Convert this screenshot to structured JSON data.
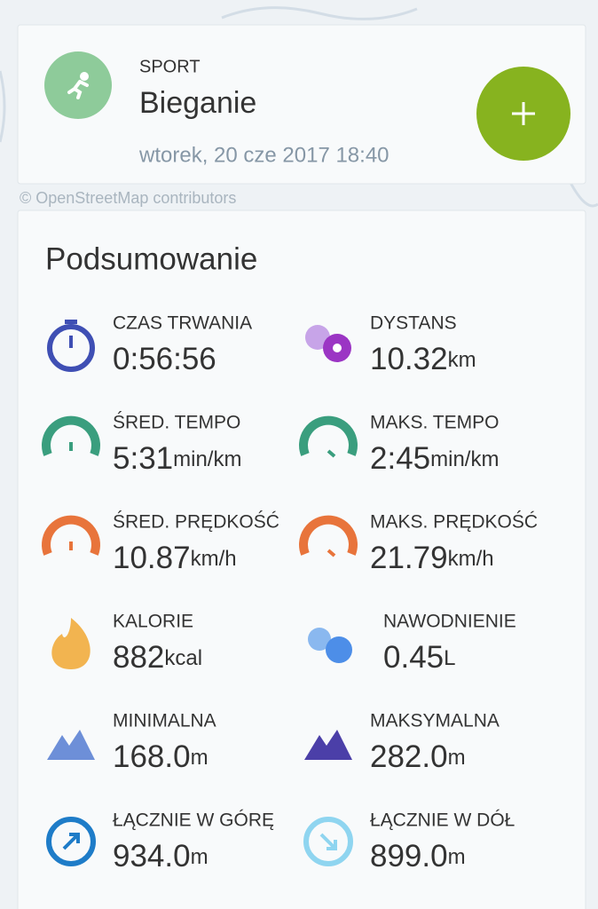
{
  "header": {
    "sport_label": "SPORT",
    "sport": "Bieganie",
    "date": "wtorek, 20 cze 2017 18:40"
  },
  "attribution": "© OpenStreetMap contributors",
  "summary": {
    "title": "Podsumowanie",
    "stats": [
      {
        "label": "CZAS TRWANIA",
        "value": "0:56:56"
      },
      {
        "label": "DYSTANS",
        "value": "10.32",
        "unit": "km"
      },
      {
        "label": "ŚRED. TEMPO",
        "value": "5:31",
        "unit": "min/km"
      },
      {
        "label": "MAKS. TEMPO",
        "value": "2:45",
        "unit": "min/km"
      },
      {
        "label": "ŚRED. PRĘDKOŚĆ",
        "value": "10.87",
        "unit": "km/h"
      },
      {
        "label": "MAKS. PRĘDKOŚĆ",
        "value": "21.79",
        "unit": "km/h"
      },
      {
        "label": "KALORIE",
        "value": "882",
        "unit": "kcal"
      },
      {
        "label": "NAWODNIENIE",
        "value": "0.45",
        "unit": "L"
      },
      {
        "label": "MINIMALNA",
        "value": "168.0",
        "unit": "m"
      },
      {
        "label": "MAKSYMALNA",
        "value": "282.0",
        "unit": "m"
      },
      {
        "label": "ŁĄCZNIE W GÓRĘ",
        "value": "934.0",
        "unit": "m"
      },
      {
        "label": "ŁĄCZNIE W DÓŁ",
        "value": "899.0",
        "unit": "m"
      }
    ]
  }
}
